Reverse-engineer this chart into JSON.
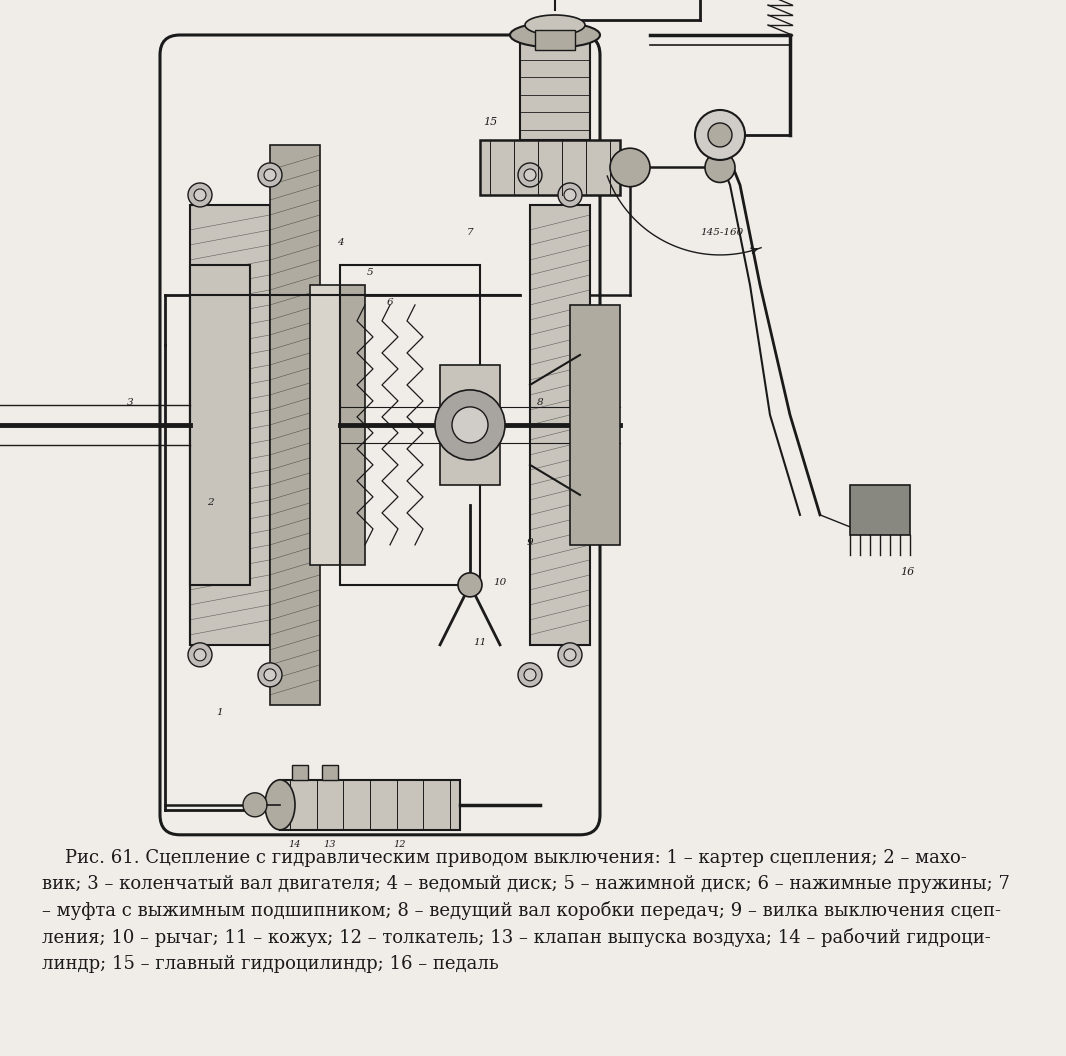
{
  "background_color": "#f0ede8",
  "figure_width": 10.66,
  "figure_height": 10.56,
  "caption_lines": [
    "    Рис. 61. Сцепление с гидравлическим приводом выключения: 1 – картер сцепления; 2 – махо-",
    "вик; 3 – коленчатый вал двигателя; 4 – ведомый диск; 5 – нажимной диск; 6 – нажимные пружины; 7",
    "– муфта с выжимным подшипником; 8 – ведущий вал коробки передач; 9 – вилка выключения сцеп-",
    "ления; 10 – рычаг; 11 – кожух; 12 – толкатель; 13 – клапан выпуска воздуха; 14 – рабочий гидроци-",
    "линдр; 15 – главный гидроцилиндр; 16 – педаль"
  ],
  "text_color": "#1a1a1a",
  "caption_fontsize": 13.0,
  "line_color": "#1a1a1a",
  "fill_light": "#c8c4bc",
  "fill_medium": "#b0aba0",
  "fill_dark": "#888880",
  "hatch_color": "#333330"
}
